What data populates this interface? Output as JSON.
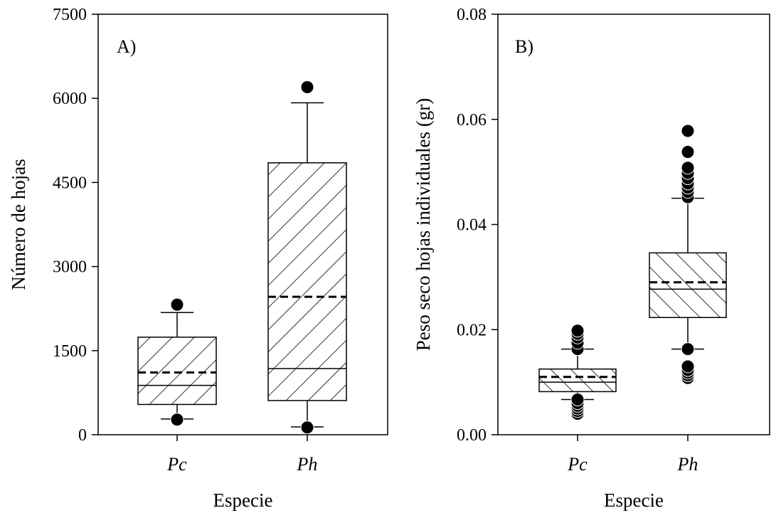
{
  "chart_data": [
    {
      "panel_label": "A)",
      "type": "box",
      "xlabel": "Especie",
      "ylabel": "Número de hojas",
      "categories": [
        "Pc",
        "Ph"
      ],
      "ylim": [
        0,
        7500
      ],
      "yticks": [
        "0",
        "1500",
        "3000",
        "4500",
        "6000",
        "7500"
      ],
      "yticks_values": [
        0,
        1500,
        3000,
        4500,
        6000,
        7500
      ],
      "boxes": [
        {
          "category": "Pc",
          "whisker_low": 280,
          "q1": 540,
          "median": 880,
          "mean": 1110,
          "q3": 1740,
          "whisker_high": 2180,
          "outliers": [
            270,
            2320
          ]
        },
        {
          "category": "Ph",
          "whisker_low": 140,
          "q1": 610,
          "median": 1180,
          "mean": 2460,
          "q3": 4850,
          "whisker_high": 5920,
          "outliers": [
            130,
            6200
          ]
        }
      ],
      "grid": false,
      "fill_pattern": "hatched"
    },
    {
      "panel_label": "B)",
      "type": "box",
      "xlabel": "Especie",
      "ylabel": "Peso seco hojas individuales (gr)",
      "categories": [
        "Pc",
        "Ph"
      ],
      "ylim": [
        0,
        0.08
      ],
      "yticks": [
        "0.00",
        "0.02",
        "0.04",
        "0.06",
        "0.08"
      ],
      "yticks_values": [
        0,
        0.02,
        0.04,
        0.06,
        0.08
      ],
      "boxes": [
        {
          "category": "Pc",
          "whisker_low": 0.0067,
          "q1": 0.0082,
          "median": 0.01,
          "mean": 0.011,
          "q3": 0.0125,
          "whisker_high": 0.0163,
          "outliers": [
            0.004,
            0.0045,
            0.005,
            0.0055,
            0.006,
            0.0067,
            0.0163,
            0.0175,
            0.0185,
            0.0192,
            0.0198
          ]
        },
        {
          "category": "Ph",
          "whisker_low": 0.0163,
          "q1": 0.0223,
          "median": 0.0277,
          "mean": 0.029,
          "q3": 0.0346,
          "whisker_high": 0.045,
          "outliers": [
            0.0108,
            0.0113,
            0.0118,
            0.0123,
            0.013,
            0.0163,
            0.0452,
            0.0462,
            0.047,
            0.0478,
            0.0488,
            0.0498,
            0.0508,
            0.0538,
            0.0578
          ]
        }
      ],
      "grid": false,
      "fill_pattern": "hatched"
    }
  ]
}
